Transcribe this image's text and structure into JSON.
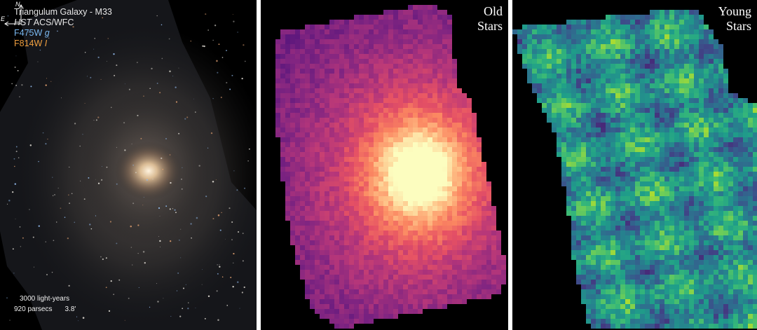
{
  "panel_galaxy": {
    "title": "Triangulum Galaxy - M33",
    "instrument_italic": "HST",
    "instrument_rest": " ACS/WFC",
    "filter_blue": "F475W ",
    "filter_blue_band": "g",
    "filter_orange": "F814W ",
    "filter_orange_band": "I",
    "scale_lightyears": "3000 light-years",
    "scale_parsecs": "920 parsecs",
    "scale_arcmin": "3.8'",
    "compass_north": "N",
    "compass_east": "E"
  },
  "panel_old": {
    "line1": "Old",
    "line2": "Stars",
    "colormap": "magma"
  },
  "panel_young": {
    "line1": "Young",
    "line2": "Stars",
    "colormap": "viridis"
  }
}
